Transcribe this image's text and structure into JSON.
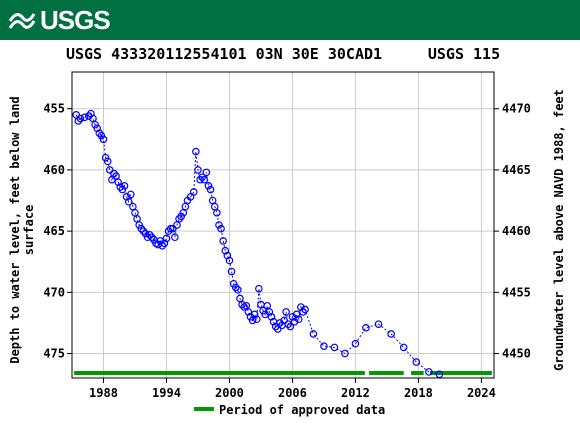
{
  "banner": {
    "logo_text": "USGS"
  },
  "chart_data": {
    "type": "scatter",
    "title": "USGS 433320112554101 03N 30E 30CAD1",
    "title_right": "USGS 115",
    "ylabel_left": [
      "Depth to water level, feet below land",
      "surface"
    ],
    "ylabel_right": "Groundwater level above NAVD 1988, feet",
    "x_ticks": [
      "1988",
      "1994",
      "2000",
      "2006",
      "2012",
      "2018",
      "2024"
    ],
    "x_tick_values": [
      1988,
      1994,
      2000,
      2006,
      2012,
      2018,
      2024
    ],
    "xlim": [
      1985.0,
      2025.2
    ],
    "ylim_left": [
      477.0,
      452.0
    ],
    "y_ticks_left": [
      "455",
      "460",
      "465",
      "470",
      "475"
    ],
    "y_tick_values_left": [
      455,
      460,
      465,
      470,
      475
    ],
    "y_ticks_right": [
      "4470",
      "4465",
      "4460",
      "4455",
      "4450"
    ],
    "y_tick_values_right": [
      4470,
      4465,
      4460,
      4455,
      4450
    ],
    "datum_offset": 4925,
    "grid": true,
    "legend": {
      "label": "Period of approved data",
      "position": "bottom-center"
    },
    "approved_periods": [
      [
        1985.2,
        2012.9
      ],
      [
        2013.3,
        2016.6
      ],
      [
        2017.3,
        2018.5
      ],
      [
        2019.1,
        2025.0
      ]
    ],
    "colors": {
      "points": "#0000ff",
      "approved": "#009900",
      "banner": "#006f41",
      "grid": "#cccccc"
    },
    "series": [
      {
        "points": [
          [
            1985.4,
            455.5
          ],
          [
            1985.6,
            456.0
          ],
          [
            1985.8,
            455.8
          ],
          [
            1986.2,
            455.7
          ],
          [
            1986.6,
            455.6
          ],
          [
            1986.8,
            455.4
          ],
          [
            1987.0,
            455.8
          ],
          [
            1987.2,
            456.3
          ],
          [
            1987.4,
            456.6
          ],
          [
            1987.6,
            457.0
          ],
          [
            1987.8,
            457.2
          ],
          [
            1988.0,
            457.5
          ],
          [
            1988.2,
            459.0
          ],
          [
            1988.4,
            459.3
          ],
          [
            1988.6,
            460.0
          ],
          [
            1988.8,
            460.8
          ],
          [
            1989.0,
            460.3
          ],
          [
            1989.2,
            460.5
          ],
          [
            1989.4,
            461.0
          ],
          [
            1989.6,
            461.4
          ],
          [
            1989.8,
            461.6
          ],
          [
            1990.0,
            461.3
          ],
          [
            1990.2,
            462.2
          ],
          [
            1990.4,
            462.6
          ],
          [
            1990.6,
            462.0
          ],
          [
            1990.8,
            463.0
          ],
          [
            1991.0,
            463.5
          ],
          [
            1991.2,
            464.0
          ],
          [
            1991.4,
            464.5
          ],
          [
            1991.6,
            464.8
          ],
          [
            1991.8,
            465.0
          ],
          [
            1992.0,
            465.2
          ],
          [
            1992.2,
            465.5
          ],
          [
            1992.4,
            465.3
          ],
          [
            1992.6,
            465.5
          ],
          [
            1992.8,
            465.7
          ],
          [
            1993.0,
            466.0
          ],
          [
            1993.2,
            466.1
          ],
          [
            1993.4,
            465.8
          ],
          [
            1993.6,
            466.2
          ],
          [
            1993.8,
            466.0
          ],
          [
            1994.0,
            465.6
          ],
          [
            1994.2,
            465.0
          ],
          [
            1994.4,
            464.8
          ],
          [
            1994.6,
            464.8
          ],
          [
            1994.8,
            465.5
          ],
          [
            1995.0,
            464.5
          ],
          [
            1995.2,
            464.0
          ],
          [
            1995.4,
            463.8
          ],
          [
            1995.6,
            463.5
          ],
          [
            1995.8,
            463.0
          ],
          [
            1996.0,
            462.5
          ],
          [
            1996.3,
            462.2
          ],
          [
            1996.6,
            461.8
          ],
          [
            1996.8,
            458.5
          ],
          [
            1997.0,
            460.0
          ],
          [
            1997.2,
            460.8
          ],
          [
            1997.4,
            460.6
          ],
          [
            1997.6,
            460.8
          ],
          [
            1997.8,
            460.2
          ],
          [
            1998.0,
            461.3
          ],
          [
            1998.2,
            461.6
          ],
          [
            1998.4,
            462.5
          ],
          [
            1998.6,
            463.0
          ],
          [
            1998.8,
            463.5
          ],
          [
            1999.0,
            464.5
          ],
          [
            1999.2,
            464.8
          ],
          [
            1999.4,
            465.8
          ],
          [
            1999.6,
            466.6
          ],
          [
            1999.8,
            467.0
          ],
          [
            2000.0,
            467.4
          ],
          [
            2000.2,
            468.3
          ],
          [
            2000.4,
            469.3
          ],
          [
            2000.6,
            469.6
          ],
          [
            2000.8,
            469.8
          ],
          [
            2001.0,
            470.5
          ],
          [
            2001.2,
            471.0
          ],
          [
            2001.4,
            471.2
          ],
          [
            2001.6,
            471.1
          ],
          [
            2001.8,
            471.6
          ],
          [
            2002.0,
            472.0
          ],
          [
            2002.2,
            472.3
          ],
          [
            2002.4,
            471.8
          ],
          [
            2002.6,
            472.2
          ],
          [
            2002.8,
            469.7
          ],
          [
            2003.0,
            471.0
          ],
          [
            2003.2,
            471.5
          ],
          [
            2003.4,
            471.8
          ],
          [
            2003.6,
            471.1
          ],
          [
            2003.8,
            471.6
          ],
          [
            2004.0,
            472.0
          ],
          [
            2004.2,
            472.4
          ],
          [
            2004.4,
            472.8
          ],
          [
            2004.6,
            473.0
          ],
          [
            2004.8,
            472.5
          ],
          [
            2005.0,
            472.7
          ],
          [
            2005.2,
            472.3
          ],
          [
            2005.4,
            471.6
          ],
          [
            2005.6,
            472.6
          ],
          [
            2005.8,
            472.8
          ],
          [
            2006.0,
            472.0
          ],
          [
            2006.2,
            472.4
          ],
          [
            2006.4,
            471.8
          ],
          [
            2006.6,
            472.2
          ],
          [
            2006.8,
            471.2
          ],
          [
            2007.0,
            471.6
          ],
          [
            2007.2,
            471.4
          ],
          [
            2008.0,
            473.4
          ],
          [
            2009.0,
            474.4
          ],
          [
            2010.0,
            474.5
          ],
          [
            2011.0,
            475.0
          ],
          [
            2012.0,
            474.2
          ],
          [
            2013.0,
            472.9
          ],
          [
            2014.2,
            472.6
          ],
          [
            2015.4,
            473.4
          ],
          [
            2016.6,
            474.5
          ],
          [
            2017.8,
            475.7
          ],
          [
            2019.0,
            476.5
          ],
          [
            2020.0,
            476.7
          ]
        ]
      }
    ]
  }
}
